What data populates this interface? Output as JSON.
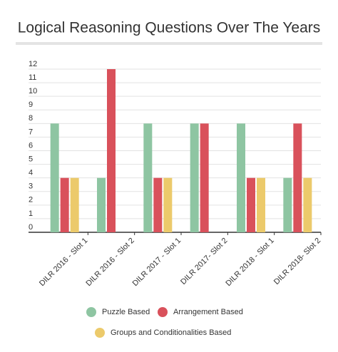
{
  "chart_data": {
    "type": "bar",
    "title": "Logical Reasoning Questions Over The Years",
    "categories": [
      "DILR 2016 - Slot 1",
      "DILR 2016 - Slot 2",
      "DILR 2017 - Slot 1",
      "DILR 2017- Slot 2",
      "DILR 2018 - Slot 1",
      "DILR 2018- Slot 2"
    ],
    "series": [
      {
        "name": "Puzzle Based",
        "color": "#8ec5a2",
        "values": [
          8,
          4,
          8,
          8,
          8,
          4
        ]
      },
      {
        "name": "Arrangement Based",
        "color": "#d9515b",
        "values": [
          4,
          12,
          4,
          8,
          4,
          8
        ]
      },
      {
        "name": "Groups and Conditionalities Based",
        "color": "#ecca6b",
        "values": [
          4,
          0,
          4,
          0,
          4,
          4
        ]
      }
    ],
    "ylim": [
      0,
      12
    ],
    "yticks": [
      0,
      1,
      2,
      3,
      4,
      5,
      6,
      7,
      8,
      9,
      10,
      11,
      12
    ],
    "grid": true
  }
}
